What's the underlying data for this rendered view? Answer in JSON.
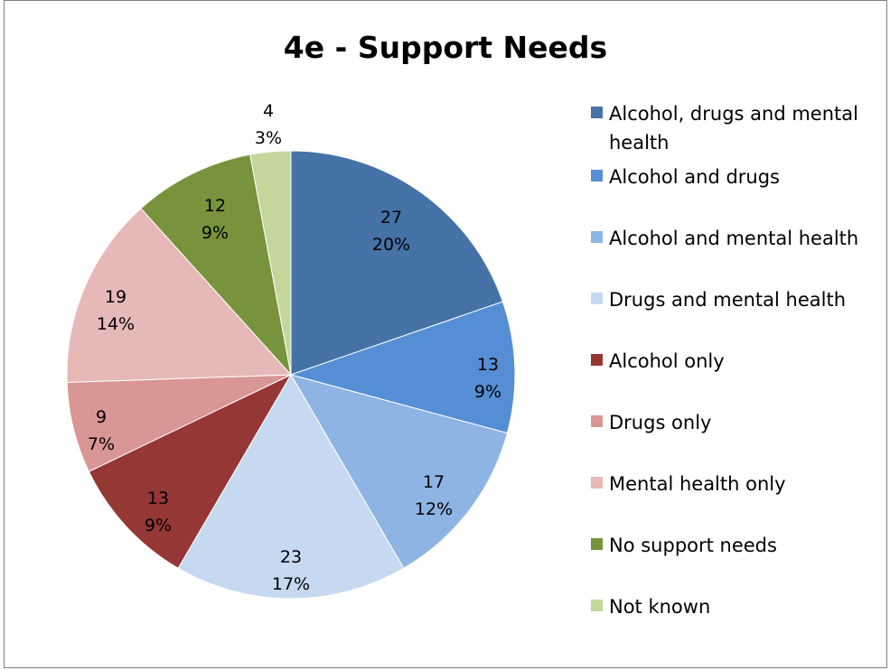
{
  "chart_data": {
    "type": "pie",
    "title": "4e - Support Needs",
    "legend_position": "right",
    "slices": [
      {
        "name": "Alcohol, drugs and mental health",
        "value": 27,
        "percent_label": "20%",
        "color": "#4572A7"
      },
      {
        "name": "Alcohol and drugs",
        "value": 13,
        "percent_label": "9%",
        "color": "#558ED5"
      },
      {
        "name": "Alcohol and mental health",
        "value": 17,
        "percent_label": "12%",
        "color": "#8EB4E3"
      },
      {
        "name": "Drugs and mental health",
        "value": 23,
        "percent_label": "17%",
        "color": "#C6D9F1"
      },
      {
        "name": "Alcohol only",
        "value": 13,
        "percent_label": "9%",
        "color": "#953735"
      },
      {
        "name": "Drugs only",
        "value": 9,
        "percent_label": "7%",
        "color": "#D99694"
      },
      {
        "name": "Mental health only",
        "value": 19,
        "percent_label": "14%",
        "color": "#E6B9B8"
      },
      {
        "name": "No support needs",
        "value": 12,
        "percent_label": "9%",
        "color": "#77933C"
      },
      {
        "name": "Not known",
        "value": 4,
        "percent_label": "3%",
        "color": "#C3D69B"
      }
    ]
  }
}
